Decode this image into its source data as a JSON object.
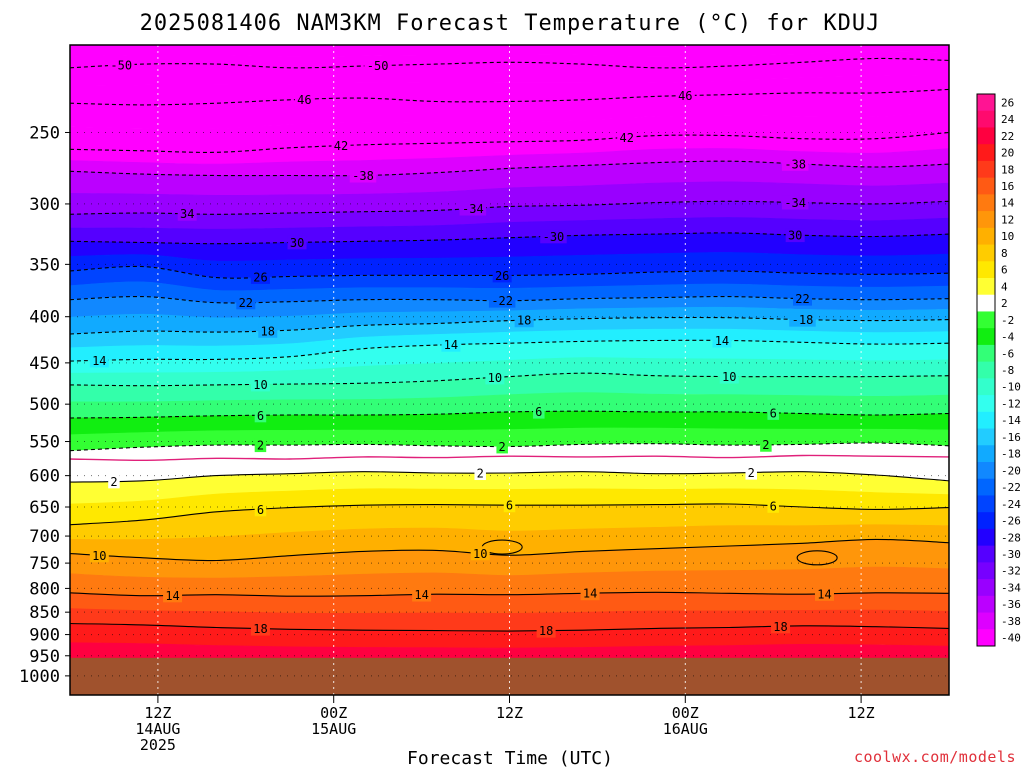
{
  "chart_data": {
    "type": "heatmap",
    "title": "2025081406 NAM3KM Forecast Temperature (°C) for KDUJ",
    "xlabel": "Forecast Time (UTC)",
    "x_ticks": [
      {
        "hour": 6,
        "lines": [
          "12Z",
          "14AUG",
          "2025"
        ]
      },
      {
        "hour": 18,
        "lines": [
          "00Z",
          "15AUG"
        ]
      },
      {
        "hour": 30,
        "lines": [
          "12Z"
        ]
      },
      {
        "hour": 42,
        "lines": [
          "00Z",
          "16AUG"
        ]
      },
      {
        "hour": 54,
        "lines": [
          "12Z"
        ]
      }
    ],
    "xlim": [
      0,
      60
    ],
    "ylim": [
      200,
      1050
    ],
    "y_scale": "log-pressure",
    "y_ticks": [
      "250",
      "300",
      "350",
      "400",
      "450",
      "500",
      "550",
      "600",
      "650",
      "700",
      "750",
      "800",
      "850",
      "900",
      "950",
      "1000"
    ],
    "y_tick_values": [
      250,
      300,
      350,
      400,
      450,
      500,
      550,
      600,
      650,
      700,
      750,
      800,
      850,
      900,
      950,
      1000
    ],
    "surface_pressure": 955,
    "ground_color": "#a0522d",
    "colorbar": {
      "labels": [
        "26",
        "24",
        "22",
        "20",
        "18",
        "16",
        "14",
        "12",
        "10",
        "8",
        "6",
        "4",
        "2",
        "-2",
        "-4",
        "-6",
        "-8",
        "-10",
        "-12",
        "-14",
        "-16",
        "-18",
        "-20",
        "-22",
        "-24",
        "-26",
        "-28",
        "-30",
        "-32",
        "-34",
        "-36",
        "-38",
        "-40"
      ],
      "colors": [
        "#ff1493",
        "#ff0a6e",
        "#ff0040",
        "#ff1a1a",
        "#ff3a1a",
        "#ff5a14",
        "#ff7a10",
        "#ff960a",
        "#ffb000",
        "#ffcc00",
        "#ffe800",
        "#ffff33",
        "#ffffff",
        "#33ff33",
        "#11ee11",
        "#33ff77",
        "#33ffaa",
        "#33ffcc",
        "#33ffee",
        "#22eeff",
        "#22ccff",
        "#11aaff",
        "#1188ff",
        "#0066ff",
        "#0044ff",
        "#0022ff",
        "#2200ff",
        "#5500ff",
        "#7700ff",
        "#9900ff",
        "#bb00ff",
        "#dd00ff",
        "#ff00ff"
      ]
    },
    "contours": [
      {
        "value": -50,
        "p": [
          212,
          210,
          210,
          212,
          211,
          210,
          209,
          210,
          212,
          211,
          209,
          207,
          208
        ],
        "dashed": true,
        "labels": [
          {
            "hour": 3.5,
            "text": "-50"
          },
          {
            "hour": 21,
            "text": "-50"
          }
        ]
      },
      {
        "value": -46,
        "p": [
          232,
          233,
          232,
          230,
          229,
          231,
          231,
          230,
          228,
          227,
          226,
          226,
          224
        ],
        "dashed": true,
        "labels": [
          {
            "hour": 16,
            "text": "46"
          },
          {
            "hour": 42,
            "text": "46"
          }
        ]
      },
      {
        "value": -42,
        "p": [
          261,
          262,
          263,
          260,
          258,
          257,
          256,
          255,
          252,
          252,
          254,
          254,
          250
        ],
        "dashed": true,
        "labels": [
          {
            "hour": 18.5,
            "text": "42"
          },
          {
            "hour": 38,
            "text": "42"
          }
        ]
      },
      {
        "value": -38,
        "p": [
          276,
          278,
          279,
          279,
          279,
          277,
          274,
          272,
          270,
          269,
          271,
          273,
          271
        ],
        "dashed": true,
        "labels": [
          {
            "hour": 20,
            "text": "-38"
          },
          {
            "hour": 49.5,
            "text": "-38"
          }
        ]
      },
      {
        "value": -34,
        "p": [
          308,
          307,
          308,
          307,
          306,
          305,
          302,
          301,
          299,
          298,
          299,
          300,
          298
        ],
        "dashed": true,
        "labels": [
          {
            "hour": 8,
            "text": "34"
          },
          {
            "hour": 27.5,
            "text": "-34"
          },
          {
            "hour": 49.5,
            "text": "-34"
          }
        ]
      },
      {
        "value": -30,
        "p": [
          330,
          331,
          332,
          331,
          330,
          329,
          327,
          325,
          324,
          323,
          325,
          326,
          324
        ],
        "dashed": true,
        "labels": [
          {
            "hour": 15.5,
            "text": "30"
          },
          {
            "hour": 33,
            "text": "-30"
          },
          {
            "hour": 49.5,
            "text": "30"
          }
        ]
      },
      {
        "value": -26,
        "p": [
          356,
          352,
          362,
          361,
          360,
          360,
          360,
          359,
          357,
          356,
          358,
          359,
          358
        ],
        "dashed": true,
        "labels": [
          {
            "hour": 13,
            "text": "26"
          },
          {
            "hour": 29.5,
            "text": "26"
          }
        ]
      },
      {
        "value": -22,
        "p": [
          383,
          380,
          386,
          385,
          383,
          383,
          384,
          382,
          381,
          380,
          382,
          383,
          382
        ],
        "dashed": true,
        "labels": [
          {
            "hour": 12,
            "text": "22"
          },
          {
            "hour": 29.5,
            "text": "-22"
          },
          {
            "hour": 50,
            "text": "22"
          }
        ]
      },
      {
        "value": -18,
        "p": [
          418,
          415,
          416,
          414,
          409,
          407,
          404,
          402,
          401,
          401,
          403,
          404,
          403
        ],
        "dashed": true,
        "labels": [
          {
            "hour": 13.5,
            "text": "18"
          },
          {
            "hour": 31,
            "text": "18"
          },
          {
            "hour": 50,
            "text": "-18"
          }
        ]
      },
      {
        "value": -14,
        "p": [
          448,
          446,
          446,
          443,
          434,
          430,
          428,
          426,
          425,
          425,
          427,
          429,
          428
        ],
        "dashed": true,
        "labels": [
          {
            "hour": 2,
            "text": "14"
          },
          {
            "hour": 26,
            "text": "14"
          },
          {
            "hour": 44.5,
            "text": "14"
          }
        ]
      },
      {
        "value": -10,
        "p": [
          476,
          477,
          476,
          475,
          474,
          471,
          466,
          462,
          465,
          466,
          466,
          466,
          465
        ],
        "dashed": true,
        "labels": [
          {
            "hour": 13,
            "text": "10"
          },
          {
            "hour": 29,
            "text": "10"
          },
          {
            "hour": 45,
            "text": "10"
          }
        ]
      },
      {
        "value": -6,
        "p": [
          518,
          517,
          515,
          514,
          514,
          513,
          510,
          509,
          510,
          510,
          512,
          514,
          512
        ],
        "dashed": true,
        "labels": [
          {
            "hour": 13,
            "text": "6"
          },
          {
            "hour": 32,
            "text": "6"
          },
          {
            "hour": 48,
            "text": "6"
          }
        ]
      },
      {
        "value": -2,
        "p": [
          563,
          558,
          555,
          555,
          554,
          556,
          557,
          554,
          553,
          555,
          554,
          552,
          556
        ],
        "dashed": true,
        "labels": [
          {
            "hour": 13,
            "text": "2"
          },
          {
            "hour": 29.5,
            "text": "2"
          },
          {
            "hour": 47.5,
            "text": "2"
          }
        ]
      },
      {
        "value": 0,
        "p": [
          575,
          577,
          574,
          575,
          572,
          573,
          571,
          572,
          571,
          573,
          570,
          571,
          572
        ],
        "dashed": false,
        "magenta": true,
        "labels": []
      },
      {
        "value": 2,
        "p": [
          610,
          608,
          600,
          597,
          594,
          596,
          596,
          594,
          597,
          596,
          594,
          599,
          608
        ],
        "dashed": false,
        "labels": [
          {
            "hour": 3,
            "text": "2"
          },
          {
            "hour": 28,
            "text": "2"
          },
          {
            "hour": 46.5,
            "text": "2"
          }
        ]
      },
      {
        "value": 6,
        "p": [
          680,
          672,
          658,
          651,
          647,
          646,
          647,
          647,
          646,
          645,
          650,
          654,
          651
        ],
        "dashed": false,
        "labels": [
          {
            "hour": 13,
            "text": "6"
          },
          {
            "hour": 30,
            "text": "6"
          },
          {
            "hour": 48,
            "text": "6"
          }
        ]
      },
      {
        "value": 10,
        "p": [
          732,
          740,
          745,
          736,
          728,
          726,
          735,
          728,
          723,
          718,
          713,
          706,
          712
        ],
        "dashed": false,
        "labels": [
          {
            "hour": 2,
            "text": "10"
          },
          {
            "hour": 28,
            "text": "10"
          }
        ]
      },
      {
        "value": 14,
        "p": [
          809,
          815,
          813,
          816,
          815,
          812,
          813,
          810,
          808,
          810,
          812,
          809,
          810
        ],
        "dashed": false,
        "labels": [
          {
            "hour": 7,
            "text": "14"
          },
          {
            "hour": 24,
            "text": "14"
          },
          {
            "hour": 35.5,
            "text": "14"
          },
          {
            "hour": 51.5,
            "text": "14"
          }
        ]
      },
      {
        "value": 18,
        "p": [
          875,
          878,
          884,
          888,
          890,
          891,
          892,
          890,
          886,
          884,
          880,
          882,
          886
        ],
        "dashed": false,
        "labels": [
          {
            "hour": 13,
            "text": "18"
          },
          {
            "hour": 32.5,
            "text": "18"
          },
          {
            "hour": 48.5,
            "text": "18"
          }
        ]
      }
    ],
    "cells": [
      {
        "hour": 29.5,
        "p": 720,
        "text": ""
      },
      {
        "hour": 51,
        "p": 740,
        "text": ""
      }
    ],
    "credit": "coolwx.com/models"
  }
}
